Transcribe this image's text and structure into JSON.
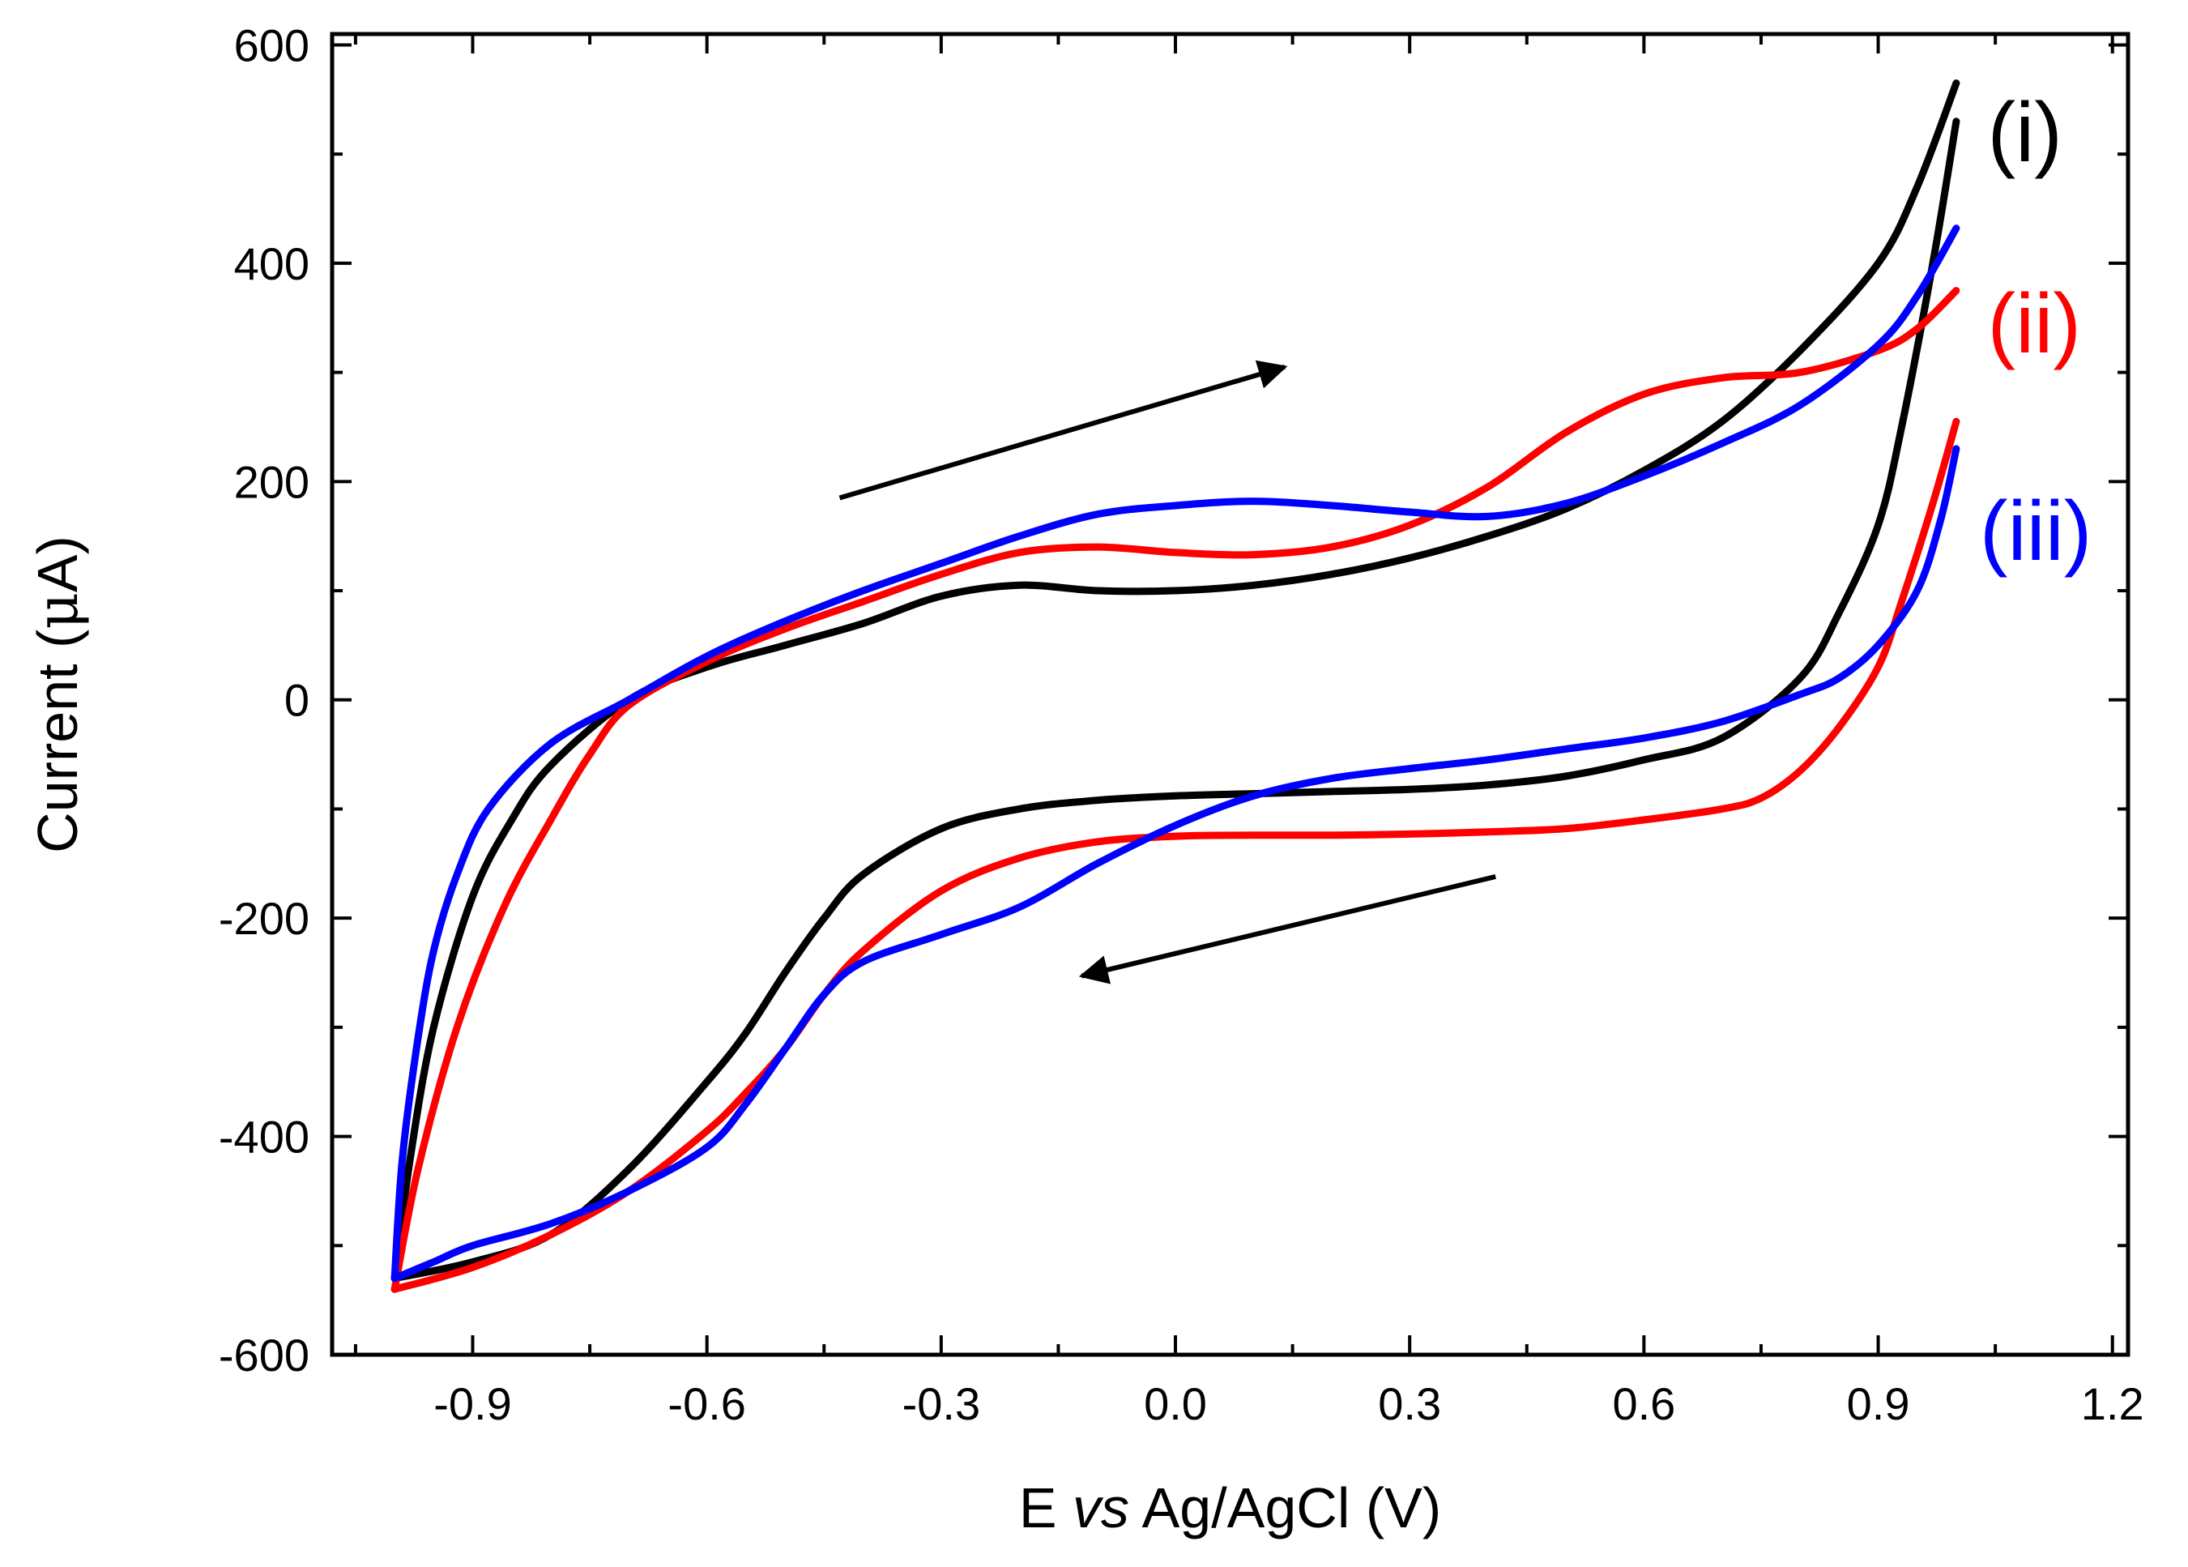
{
  "chart_data": {
    "type": "line",
    "title": "",
    "xlabel": {
      "pre": "E ",
      "italic": "vs",
      "post": " Ag/AgCl (V)"
    },
    "ylabel": {
      "pre": "Current (",
      "greek": "μ",
      "post": "A)"
    },
    "xlim": [
      -1.08,
      1.22
    ],
    "ylim": [
      -600,
      610
    ],
    "xticks": [
      -0.9,
      -0.6,
      -0.3,
      0.0,
      0.3,
      0.6,
      0.9,
      1.2
    ],
    "xtick_labels": [
      "-0.9",
      "-0.6",
      "-0.3",
      "0.0",
      "0.3",
      "0.6",
      "0.9",
      "1.2"
    ],
    "yticks": [
      -600,
      -400,
      -200,
      0,
      200,
      400,
      600
    ],
    "ytick_labels": [
      "-600",
      "-400",
      "-200",
      "0",
      "200",
      "400",
      "600"
    ],
    "x_minor_step": 0.15,
    "y_minor_step": 100,
    "grid": false,
    "legend": "direct labels at right end of curves",
    "series": [
      {
        "name": "(i)",
        "color": "#000000",
        "forward": [
          [
            -1.0,
            -530
          ],
          [
            -0.98,
            -420
          ],
          [
            -0.95,
            -300
          ],
          [
            -0.9,
            -180
          ],
          [
            -0.85,
            -110
          ],
          [
            -0.8,
            -60
          ],
          [
            -0.7,
            0
          ],
          [
            -0.6,
            30
          ],
          [
            -0.5,
            50
          ],
          [
            -0.4,
            70
          ],
          [
            -0.3,
            95
          ],
          [
            -0.2,
            105
          ],
          [
            -0.1,
            100
          ],
          [
            0.0,
            100
          ],
          [
            0.1,
            105
          ],
          [
            0.2,
            115
          ],
          [
            0.3,
            130
          ],
          [
            0.4,
            150
          ],
          [
            0.5,
            175
          ],
          [
            0.6,
            210
          ],
          [
            0.7,
            255
          ],
          [
            0.8,
            320
          ],
          [
            0.9,
            400
          ],
          [
            0.95,
            470
          ],
          [
            1.0,
            565
          ]
        ],
        "reverse": [
          [
            1.0,
            530
          ],
          [
            0.97,
            400
          ],
          [
            0.93,
            250
          ],
          [
            0.9,
            160
          ],
          [
            0.85,
            80
          ],
          [
            0.8,
            20
          ],
          [
            0.7,
            -35
          ],
          [
            0.6,
            -55
          ],
          [
            0.5,
            -70
          ],
          [
            0.4,
            -78
          ],
          [
            0.3,
            -82
          ],
          [
            0.2,
            -84
          ],
          [
            0.1,
            -86
          ],
          [
            0.0,
            -88
          ],
          [
            -0.1,
            -92
          ],
          [
            -0.2,
            -100
          ],
          [
            -0.3,
            -118
          ],
          [
            -0.4,
            -160
          ],
          [
            -0.45,
            -200
          ],
          [
            -0.5,
            -250
          ],
          [
            -0.55,
            -305
          ],
          [
            -0.6,
            -350
          ],
          [
            -0.7,
            -430
          ],
          [
            -0.8,
            -490
          ],
          [
            -0.9,
            -515
          ],
          [
            -1.0,
            -530
          ]
        ]
      },
      {
        "name": "(ii)",
        "color": "#ff0000",
        "forward": [
          [
            -1.0,
            -540
          ],
          [
            -0.97,
            -430
          ],
          [
            -0.92,
            -300
          ],
          [
            -0.86,
            -190
          ],
          [
            -0.8,
            -110
          ],
          [
            -0.75,
            -50
          ],
          [
            -0.7,
            -5
          ],
          [
            -0.6,
            35
          ],
          [
            -0.5,
            65
          ],
          [
            -0.4,
            90
          ],
          [
            -0.3,
            115
          ],
          [
            -0.2,
            135
          ],
          [
            -0.1,
            140
          ],
          [
            0.0,
            135
          ],
          [
            0.1,
            133
          ],
          [
            0.2,
            140
          ],
          [
            0.3,
            160
          ],
          [
            0.4,
            195
          ],
          [
            0.5,
            245
          ],
          [
            0.6,
            280
          ],
          [
            0.7,
            295
          ],
          [
            0.8,
            300
          ],
          [
            0.9,
            320
          ],
          [
            0.95,
            340
          ],
          [
            1.0,
            375
          ]
        ],
        "reverse": [
          [
            1.0,
            255
          ],
          [
            0.97,
            180
          ],
          [
            0.93,
            90
          ],
          [
            0.9,
            30
          ],
          [
            0.85,
            -25
          ],
          [
            0.8,
            -65
          ],
          [
            0.75,
            -90
          ],
          [
            0.7,
            -100
          ],
          [
            0.6,
            -110
          ],
          [
            0.5,
            -118
          ],
          [
            0.4,
            -121
          ],
          [
            0.3,
            -123
          ],
          [
            0.2,
            -124
          ],
          [
            0.1,
            -124
          ],
          [
            0.0,
            -125
          ],
          [
            -0.1,
            -130
          ],
          [
            -0.2,
            -145
          ],
          [
            -0.3,
            -175
          ],
          [
            -0.4,
            -230
          ],
          [
            -0.45,
            -270
          ],
          [
            -0.5,
            -320
          ],
          [
            -0.55,
            -360
          ],
          [
            -0.6,
            -395
          ],
          [
            -0.7,
            -450
          ],
          [
            -0.8,
            -490
          ],
          [
            -0.9,
            -520
          ],
          [
            -1.0,
            -540
          ]
        ]
      },
      {
        "name": "(iii)",
        "color": "#0000ff",
        "forward": [
          [
            -1.0,
            -530
          ],
          [
            -0.99,
            -420
          ],
          [
            -0.97,
            -310
          ],
          [
            -0.95,
            -230
          ],
          [
            -0.92,
            -160
          ],
          [
            -0.88,
            -100
          ],
          [
            -0.8,
            -40
          ],
          [
            -0.7,
            0
          ],
          [
            -0.6,
            40
          ],
          [
            -0.5,
            72
          ],
          [
            -0.4,
            100
          ],
          [
            -0.3,
            125
          ],
          [
            -0.2,
            150
          ],
          [
            -0.1,
            170
          ],
          [
            0.0,
            178
          ],
          [
            0.1,
            182
          ],
          [
            0.2,
            178
          ],
          [
            0.3,
            172
          ],
          [
            0.4,
            168
          ],
          [
            0.5,
            180
          ],
          [
            0.6,
            205
          ],
          [
            0.7,
            235
          ],
          [
            0.8,
            270
          ],
          [
            0.9,
            325
          ],
          [
            0.95,
            370
          ],
          [
            1.0,
            432
          ]
        ],
        "reverse": [
          [
            1.0,
            230
          ],
          [
            0.98,
            165
          ],
          [
            0.95,
            100
          ],
          [
            0.9,
            50
          ],
          [
            0.85,
            20
          ],
          [
            0.8,
            5
          ],
          [
            0.7,
            -20
          ],
          [
            0.6,
            -35
          ],
          [
            0.5,
            -45
          ],
          [
            0.4,
            -55
          ],
          [
            0.3,
            -63
          ],
          [
            0.2,
            -72
          ],
          [
            0.1,
            -88
          ],
          [
            0.0,
            -115
          ],
          [
            -0.1,
            -150
          ],
          [
            -0.2,
            -190
          ],
          [
            -0.3,
            -215
          ],
          [
            -0.4,
            -240
          ],
          [
            -0.45,
            -270
          ],
          [
            -0.5,
            -320
          ],
          [
            -0.55,
            -370
          ],
          [
            -0.6,
            -410
          ],
          [
            -0.7,
            -450
          ],
          [
            -0.8,
            -480
          ],
          [
            -0.9,
            -500
          ],
          [
            -0.95,
            -515
          ],
          [
            -1.0,
            -530
          ]
        ]
      }
    ],
    "annotations": [
      {
        "name": "scan-forward-arrow",
        "from": [
          -0.43,
          185
        ],
        "to": [
          0.14,
          305
        ]
      },
      {
        "name": "scan-reverse-arrow",
        "from": [
          0.41,
          -162
        ],
        "to": [
          -0.12,
          -253
        ]
      }
    ]
  }
}
